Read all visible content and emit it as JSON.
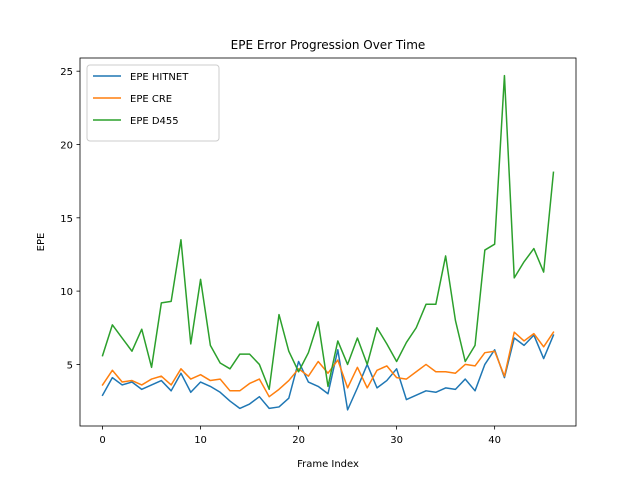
{
  "chart_data": {
    "type": "line",
    "title": "EPE Error Progression Over Time",
    "xlabel": "Frame Index",
    "ylabel": "EPE",
    "xlim": [
      -2.3,
      48.3
    ],
    "ylim": [
      0.8,
      25.9
    ],
    "xticks": [
      0,
      10,
      20,
      30,
      40
    ],
    "yticks": [
      5,
      10,
      15,
      20,
      25
    ],
    "grid": false,
    "legend_position": "upper-left",
    "x": [
      0,
      1,
      2,
      3,
      4,
      5,
      6,
      7,
      8,
      9,
      10,
      11,
      12,
      13,
      14,
      15,
      16,
      17,
      18,
      19,
      20,
      21,
      22,
      23,
      24,
      25,
      26,
      27,
      28,
      29,
      30,
      31,
      32,
      33,
      34,
      35,
      36,
      37,
      38,
      39,
      40,
      41,
      42,
      43,
      44,
      45,
      46
    ],
    "series": [
      {
        "name": "EPE HITNET",
        "color": "#1f77b4",
        "values": [
          2.9,
          4.1,
          3.6,
          3.8,
          3.3,
          3.6,
          3.9,
          3.2,
          4.4,
          3.1,
          3.8,
          3.5,
          3.1,
          2.5,
          2.0,
          2.3,
          2.8,
          2.0,
          2.1,
          2.7,
          5.2,
          3.8,
          3.5,
          3.0,
          6.0,
          1.9,
          3.4,
          5.0,
          3.4,
          3.9,
          4.7,
          2.6,
          2.9,
          3.2,
          3.1,
          3.4,
          3.3,
          4.0,
          3.2,
          5.0,
          6.0,
          4.1,
          6.8,
          6.3,
          7.0,
          5.4,
          7.0
        ]
      },
      {
        "name": "EPE CRE",
        "color": "#ff7f0e",
        "values": [
          3.6,
          4.6,
          3.8,
          3.9,
          3.6,
          4.0,
          4.2,
          3.6,
          4.7,
          4.0,
          4.3,
          3.9,
          4.0,
          3.2,
          3.2,
          3.7,
          4.0,
          2.8,
          3.3,
          3.9,
          4.7,
          4.2,
          5.2,
          4.4,
          5.3,
          3.4,
          4.8,
          3.4,
          4.6,
          4.9,
          4.1,
          4.0,
          4.5,
          5.0,
          4.5,
          4.5,
          4.4,
          5.0,
          4.9,
          5.8,
          5.9,
          4.2,
          7.2,
          6.6,
          7.1,
          6.2,
          7.2
        ]
      },
      {
        "name": "EPE D455",
        "color": "#2ca02c",
        "values": [
          5.6,
          7.7,
          6.8,
          5.9,
          7.4,
          4.8,
          9.2,
          9.3,
          13.5,
          6.4,
          10.8,
          6.3,
          5.1,
          4.7,
          5.7,
          5.7,
          5.0,
          3.3,
          8.4,
          5.9,
          4.5,
          5.8,
          7.9,
          3.5,
          6.6,
          5.0,
          6.8,
          5.0,
          7.5,
          6.4,
          5.2,
          6.5,
          7.5,
          9.1,
          9.1,
          12.4,
          8.0,
          5.2,
          6.3,
          12.8,
          13.2,
          24.7,
          10.9,
          12.0,
          12.9,
          11.3,
          18.1
        ]
      }
    ]
  }
}
